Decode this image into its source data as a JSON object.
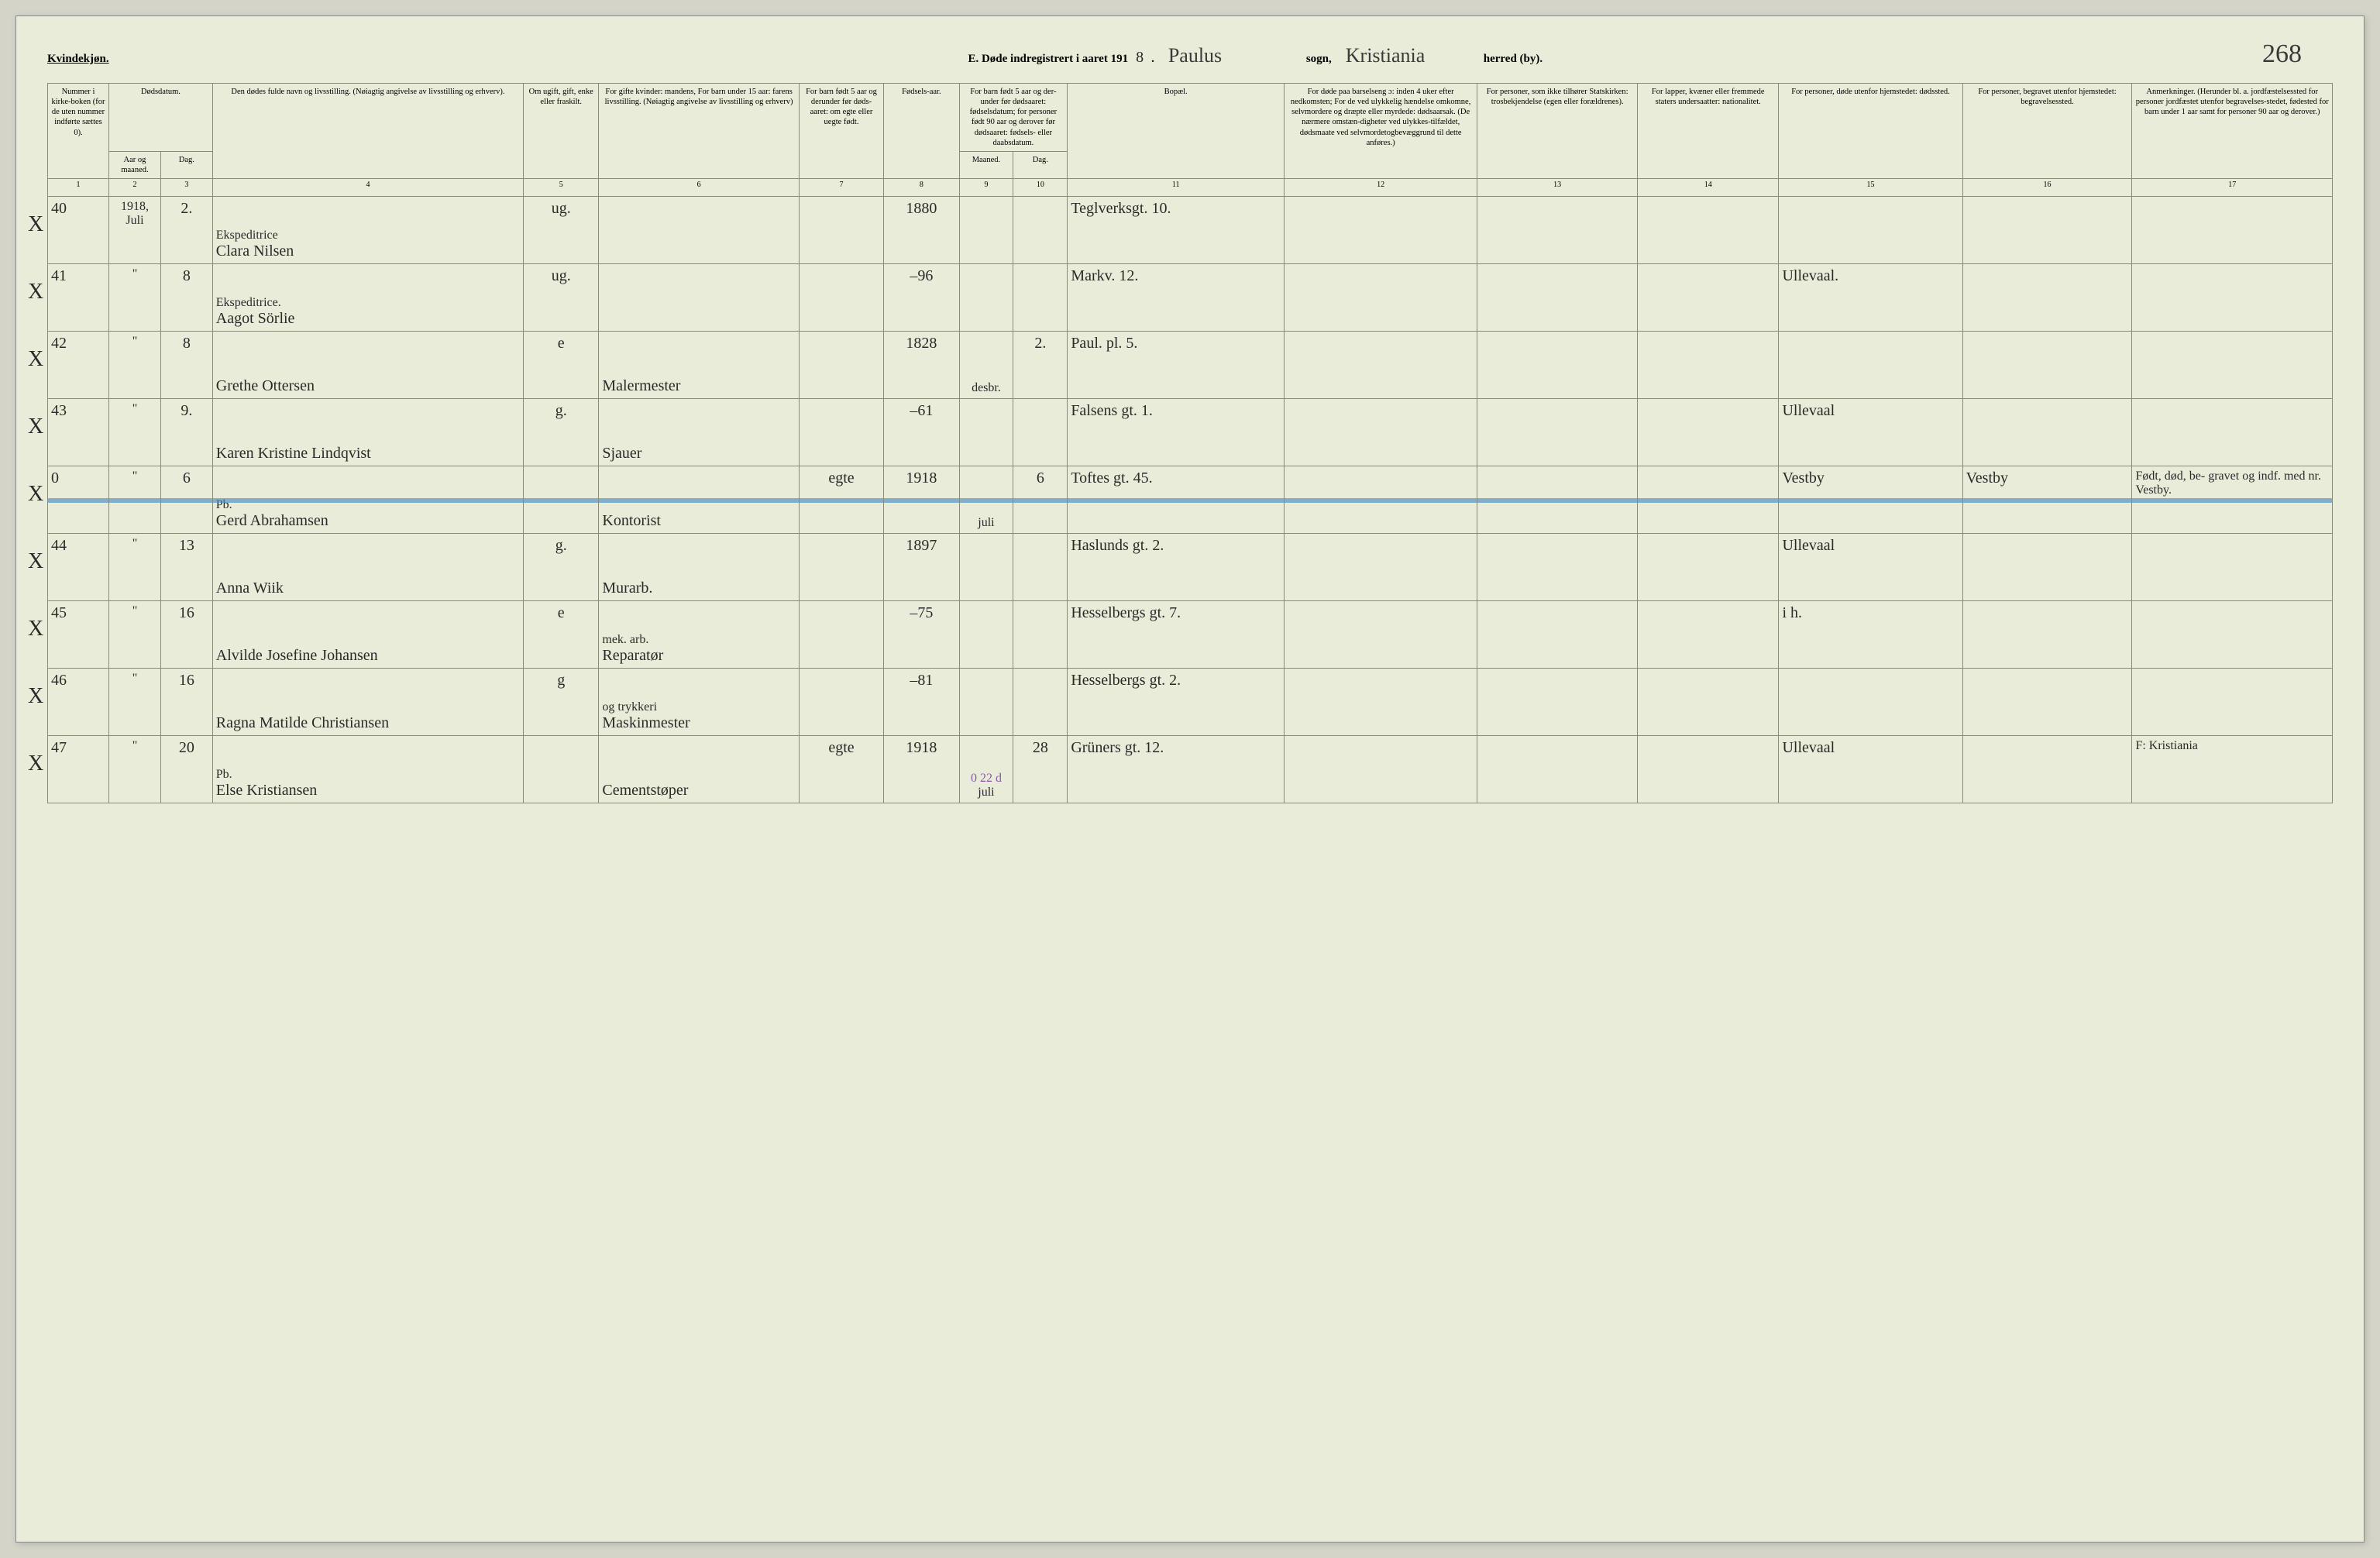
{
  "header": {
    "gender_label": "Kvindekjøn.",
    "title_prefix": "E.  Døde indregistrert i aaret 191",
    "year_suffix": "8",
    "period": ".",
    "parish_label": "sogn,",
    "parish_value": "Paulus",
    "district_label": "herred (by).",
    "district_value": "Kristiania",
    "page_number": "268"
  },
  "columns": {
    "headers": [
      "Nummer i kirke-boken (for de uten nummer indførte sættes 0).",
      "Dødsdatum.",
      "Dødsdatum.",
      "Den dødes fulde navn og livsstilling. (Nøiagtig angivelse av livsstilling og erhverv).",
      "Om ugift, gift, enke eller fraskilt.",
      "For gifte kvinder: mandens,\nFor barn under 15 aar: farens livsstilling.\n(Nøiagtig angivelse av livsstilling og erhverv)",
      "For barn født 5 aar og derunder før døds-aaret: om egte eller uegte født.",
      "Fødsels-aar.",
      "For barn født 5 aar og der-under før dødsaaret: fødselsdatum; for personer født 90 aar og derover før dødsaaret: fødsels- eller daabsdatum.",
      "",
      "Bopæl.",
      "For døde paa barselseng ɔ: inden 4 uker efter nedkomsten; For de ved ulykkelig hændelse omkomne, selvmordere og dræpte eller myrdede: dødsaarsak. (De nærmere omstæn-digheter ved ulykkes-tilfældet, dødsmaate ved selvmordetogbevæggrund til dette anføres.)",
      "For personer, som ikke tilhører Statskirken: trosbekjendelse (egen eller forældrenes).",
      "For lapper, kvæner eller fremmede staters undersaatter: nationalitet.",
      "For personer, døde utenfor hjemstedet: dødssted.",
      "For personer, begravet utenfor hjemstedet: begravelsessted.",
      "Anmerkninger. (Herunder bl. a. jordfæstelsessted for personer jordfæstet utenfor begravelses-stedet, fødested for barn under 1 aar samt for personer 90 aar og derover.)"
    ],
    "sub2": {
      "aar": "Aar og maaned.",
      "dag": "Dag."
    },
    "sub9": {
      "maaned": "Maaned.",
      "dag": "Dag."
    },
    "nums": [
      "1",
      "2",
      "3",
      "4",
      "5",
      "6",
      "7",
      "8",
      "9",
      "10",
      "11",
      "12",
      "13",
      "14",
      "15",
      "16",
      "17"
    ]
  },
  "rows": [
    {
      "x": "X",
      "num": "40",
      "aar": "1918, Juli",
      "dag": "2.",
      "name_top": "Ekspeditrice",
      "name": "Clara Nilsen",
      "status": "ug.",
      "occ": "",
      "egte": "",
      "faar": "1880",
      "fm": "",
      "fd": "",
      "bopael": "Teglverksgt. 10.",
      "col12": "",
      "col13": "",
      "col14": "",
      "col15": "",
      "col16": "",
      "col17": ""
    },
    {
      "x": "X",
      "num": "41",
      "aar": "\"",
      "dag": "8",
      "name_top": "Ekspeditrice.",
      "name": "Aagot Sörlie",
      "status": "ug.",
      "occ": "",
      "egte": "",
      "faar": "–96",
      "fm": "",
      "fd": "",
      "bopael": "Markv. 12.",
      "col12": "",
      "col13": "",
      "col14": "",
      "col15": "Ullevaal.",
      "col16": "",
      "col17": ""
    },
    {
      "x": "X",
      "num": "42",
      "aar": "\"",
      "dag": "8",
      "name_top": "",
      "name": "Grethe Ottersen",
      "status": "e",
      "occ": "Malermester",
      "egte": "",
      "faar": "1828",
      "fm": "desbr.",
      "fd": "2.",
      "bopael": "Paul. pl. 5.",
      "col12": "",
      "col13": "",
      "col14": "",
      "col15": "",
      "col16": "",
      "col17": ""
    },
    {
      "x": "X",
      "num": "43",
      "aar": "\"",
      "dag": "9.",
      "name_top": "",
      "name": "Karen Kristine Lindqvist",
      "status": "g.",
      "occ": "Sjauer",
      "egte": "",
      "faar": "–61",
      "fm": "",
      "fd": "",
      "bopael": "Falsens gt. 1.",
      "col12": "",
      "col13": "",
      "col14": "",
      "col15": "Ullevaal",
      "col16": "",
      "col17": ""
    },
    {
      "x": "X",
      "num": "0",
      "aar": "\"",
      "dag": "6",
      "name_top": "Pb.",
      "name": "Gerd Abrahamsen",
      "status": "",
      "occ": "Kontorist",
      "egte": "egte",
      "faar": "1918",
      "fm": "juli",
      "fd": "6",
      "bopael": "Toftes gt. 45.",
      "col12": "",
      "col13": "",
      "col14": "",
      "col15": "Vestby",
      "col16": "Vestby",
      "col17": "Født, død, be- gravet og indf. med nr.   Vestby.",
      "struck": true
    },
    {
      "x": "X",
      "num": "44",
      "aar": "\"",
      "dag": "13",
      "name_top": "",
      "name": "Anna Wiik",
      "status": "g.",
      "occ": "Murarb.",
      "egte": "",
      "faar": "1897",
      "fm": "",
      "fd": "",
      "bopael": "Haslunds gt. 2.",
      "col12": "",
      "col13": "",
      "col14": "",
      "col15": "Ullevaal",
      "col16": "",
      "col17": ""
    },
    {
      "x": "X",
      "num": "45",
      "aar": "\"",
      "dag": "16",
      "name_top": "",
      "name": "Alvilde Josefine Johansen",
      "status": "e",
      "occ_top": "mek. arb.",
      "occ": "Reparatør",
      "egte": "",
      "faar": "–75",
      "fm": "",
      "fd": "",
      "bopael": "Hesselbergs gt. 7.",
      "col12": "",
      "col13": "",
      "col14": "",
      "col15": "i h.",
      "col16": "",
      "col17": ""
    },
    {
      "x": "X",
      "num": "46",
      "aar": "\"",
      "dag": "16",
      "name_top": "",
      "name": "Ragna Matilde Christiansen",
      "status": "g",
      "occ_top": "og trykkeri",
      "occ": "Maskinmester",
      "egte": "",
      "faar": "–81",
      "fm": "",
      "fd": "",
      "bopael": "Hesselbergs gt. 2.",
      "col12": "",
      "col13": "",
      "col14": "",
      "col15": "",
      "col16": "",
      "col17": ""
    },
    {
      "x": "X",
      "num": "47",
      "aar": "\"",
      "dag": "20",
      "name_top": "Pb.",
      "name": "Else Kristiansen",
      "status": "",
      "occ": "Cementstøper",
      "egte": "egte",
      "faar": "1918",
      "fm_top": "0 22 d",
      "fm": "juli",
      "fd": "28",
      "bopael": "Grüners gt. 12.",
      "col12": "",
      "col13": "",
      "col14": "",
      "col15": "Ullevaal",
      "col16": "",
      "col17": "F: Kristiania"
    }
  ]
}
